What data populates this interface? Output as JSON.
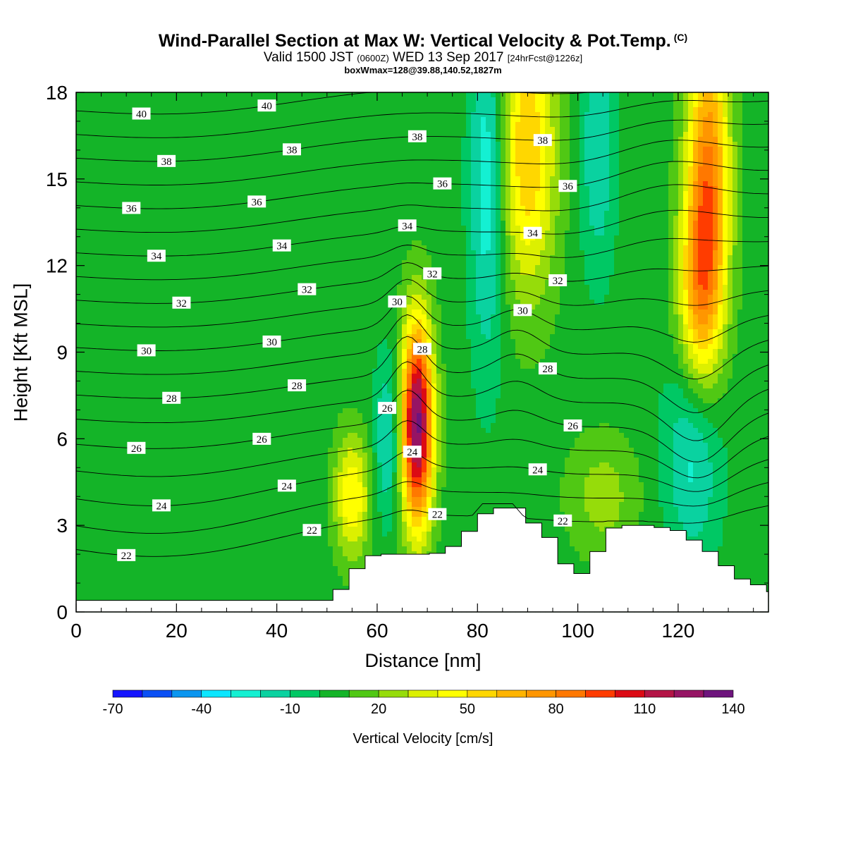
{
  "title": {
    "main": "Wind-Parallel Section at Max W: Vertical Velocity & Pot.Temp.",
    "copyright": "(C)",
    "valid": "Valid 1500 JST",
    "utc": "(0600Z)",
    "date": "WED 13 Sep 2017",
    "forecast": "[24hrFcst@1226z]",
    "box": "boxWmax=128@39.88,140.52,1827m"
  },
  "chart_data": {
    "type": "heatmap",
    "xlabel": "Distance [nm]",
    "ylabel": "Height [Kft MSL]",
    "xlim": [
      0,
      138
    ],
    "ylim": [
      0,
      18
    ],
    "xticks": [
      "0",
      "20",
      "40",
      "60",
      "80",
      "100",
      "120"
    ],
    "yticks": [
      "0",
      "3",
      "6",
      "9",
      "12",
      "15",
      "18"
    ],
    "colorbar": {
      "label": "Vertical Velocity [cm/s]",
      "tick_labels": [
        "-70",
        "-40",
        "-10",
        "20",
        "50",
        "80",
        "110",
        "140"
      ],
      "levels": [
        -70,
        -60,
        -50,
        -40,
        -30,
        -20,
        -10,
        0,
        10,
        20,
        30,
        40,
        50,
        60,
        70,
        80,
        90,
        100,
        110,
        120,
        130,
        140
      ],
      "colors": [
        "#1414ff",
        "#0a50f5",
        "#0a96f0",
        "#0ae6ff",
        "#14f0d2",
        "#0ad2a0",
        "#00c864",
        "#14b428",
        "#50c814",
        "#96dc0a",
        "#dcf000",
        "#ffff00",
        "#ffd700",
        "#ffb400",
        "#ff9600",
        "#ff7800",
        "#ff3c00",
        "#dc0a14",
        "#b41446",
        "#961464",
        "#6e147d"
      ]
    },
    "vertical_velocity_features": [
      {
        "x": 68,
        "z": 6.5,
        "w_peak": 128,
        "sx": 2.2,
        "sz": 2.5
      },
      {
        "x": 55,
        "z": 4.0,
        "w_peak": 45,
        "sx": 2.5,
        "sz": 1.5
      },
      {
        "x": 90,
        "z": 16.0,
        "w_peak": 55,
        "sx": 4.0,
        "sz": 3.5
      },
      {
        "x": 126,
        "z": 15.0,
        "w_peak": 75,
        "sx": 3.0,
        "sz": 4.0
      },
      {
        "x": 124,
        "z": 11.0,
        "w_peak": 45,
        "sx": 3.0,
        "sz": 2.5
      },
      {
        "x": 62,
        "z": 6.0,
        "w_peak": -28,
        "sx": 1.8,
        "sz": 2.0
      },
      {
        "x": 82,
        "z": 15.0,
        "w_peak": -35,
        "sx": 2.5,
        "sz": 4.5
      },
      {
        "x": 104,
        "z": 16.0,
        "w_peak": -25,
        "sx": 2.5,
        "sz": 3.0
      },
      {
        "x": 123,
        "z": 5.5,
        "w_peak": -30,
        "sx": 4.0,
        "sz": 2.5
      },
      {
        "x": 105,
        "z": 4.0,
        "w_peak": 20,
        "sx": 5.0,
        "sz": 1.5
      }
    ],
    "w_background": 5,
    "terrain": {
      "x": [
        0,
        48,
        51,
        52,
        55,
        58,
        60,
        70,
        74,
        78,
        81,
        87,
        90,
        94,
        97,
        99,
        101,
        103,
        106,
        113,
        119,
        124,
        127,
        130,
        134,
        136,
        138
      ],
      "height": [
        0.4,
        0.4,
        0.7,
        1.1,
        1.6,
        2.0,
        2.0,
        2.0,
        2.3,
        3.0,
        3.6,
        3.6,
        3.0,
        2.4,
        1.3,
        1.3,
        1.6,
        2.3,
        3.0,
        3.0,
        2.8,
        2.2,
        1.8,
        1.2,
        1.0,
        0.7,
        0.7
      ]
    },
    "theta_contours": {
      "levels": [
        22,
        23,
        24,
        25,
        26,
        27,
        28,
        29,
        30,
        31,
        32,
        33,
        34,
        35,
        36,
        37,
        38,
        39,
        40
      ],
      "labeled_levels": [
        "22",
        "24",
        "26",
        "28",
        "30",
        "32",
        "34",
        "36",
        "38",
        "40"
      ]
    }
  }
}
